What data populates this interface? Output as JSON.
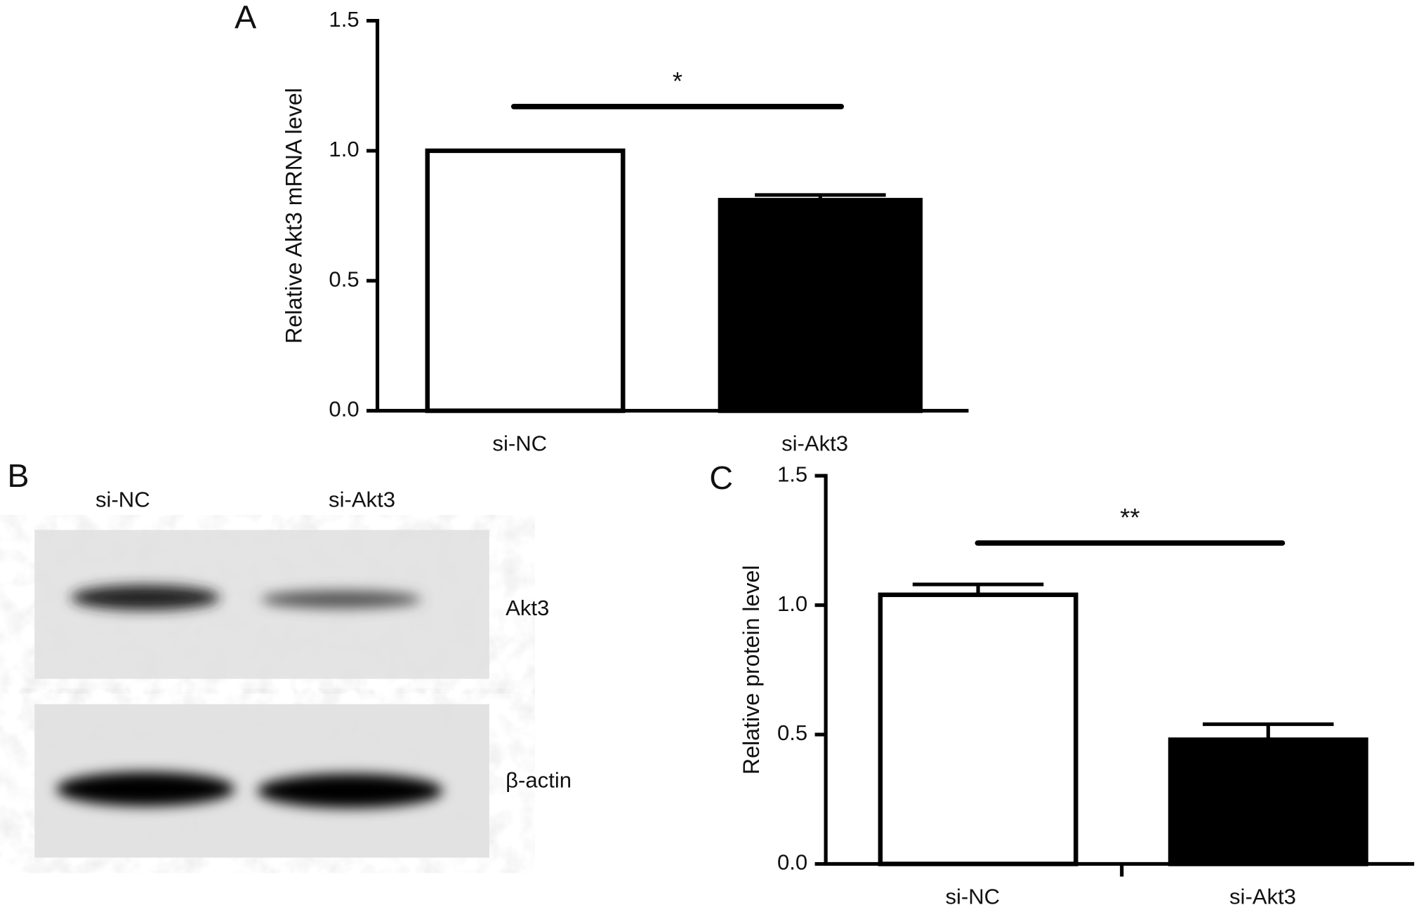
{
  "panels": [
    "A",
    "B",
    "C"
  ],
  "chart_data": [
    {
      "type": "bar",
      "y_label": "Relative Akt3 mRNA level",
      "categories": [
        "si-NC",
        "si-Akt3"
      ],
      "values": [
        1.0,
        0.81
      ],
      "errors": [
        0,
        0.02
      ],
      "colors": [
        "#ffffff",
        "#000000"
      ],
      "ylim": [
        0,
        1.5
      ],
      "yticks": [
        {
          "value": 0,
          "label": "0.0"
        },
        0.5,
        {
          "value": 1,
          "label": "1.0"
        },
        1.5
      ],
      "annotation": {
        "text": "*",
        "y": 1.17
      }
    },
    {
      "type": "bar",
      "y_label": "Relative protein level",
      "categories": [
        "si-NC",
        "si-Akt3"
      ],
      "values": [
        1.04,
        0.48
      ],
      "errors": [
        0.04,
        0.06
      ],
      "colors": [
        "#ffffff",
        "#000000"
      ],
      "ylim": [
        0,
        1.5
      ],
      "yticks": [
        {
          "value": 0,
          "label": "0.0"
        },
        0.5,
        {
          "value": 1,
          "label": "1.0"
        },
        1.5
      ],
      "annotation": {
        "text": "**",
        "y": 1.24
      }
    }
  ],
  "blot": {
    "lanes": [
      "si-NC",
      "si-Akt3"
    ],
    "bands": [
      "Akt3",
      "β-actin"
    ]
  }
}
